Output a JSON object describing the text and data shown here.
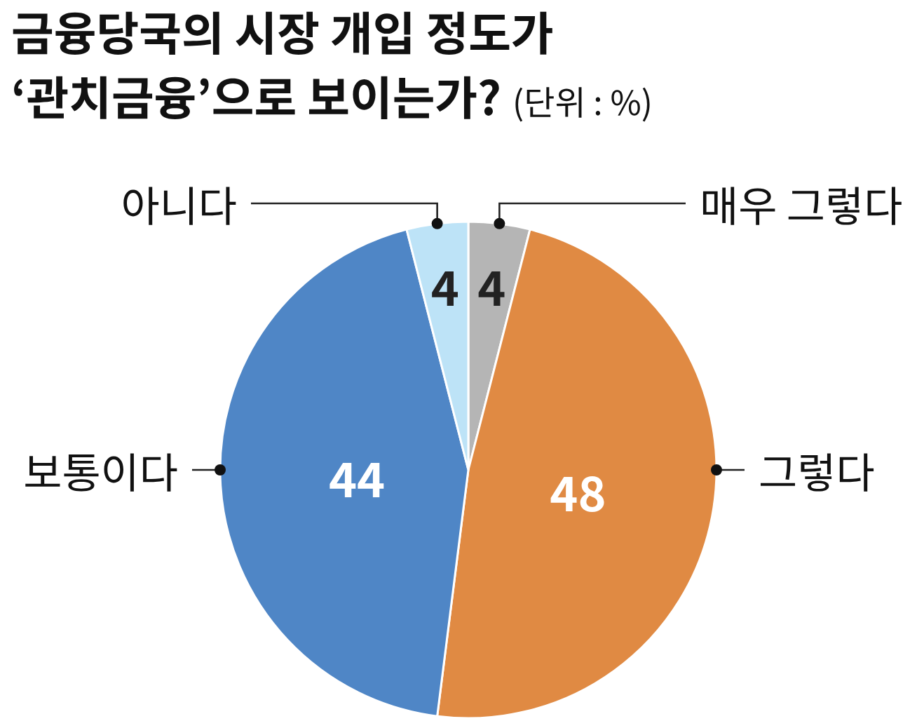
{
  "chart_data": {
    "type": "pie",
    "title": "금융당국의 시장 개입 정도가\n‘관치금융’으로 보이는가?",
    "subtitle": "(단위 : %)",
    "categories": [
      "매우 그렇다",
      "그렇다",
      "보통이다",
      "아니다"
    ],
    "values": [
      4,
      48,
      44,
      4
    ],
    "colors": [
      "#b5b5b5",
      "#e08a43",
      "#4f86c6",
      "#bde3f7"
    ],
    "data_labels": true
  }
}
